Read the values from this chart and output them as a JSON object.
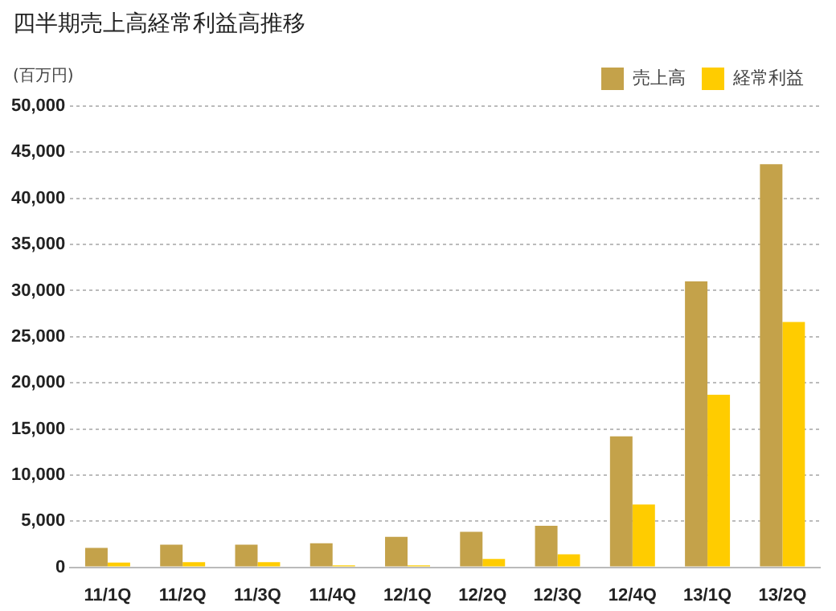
{
  "chart_data": {
    "type": "bar",
    "title": "四半期売上高経常利益高推移",
    "ylabel": "(百万円)",
    "categories": [
      "11/1Q",
      "11/2Q",
      "11/3Q",
      "11/4Q",
      "12/1Q",
      "12/2Q",
      "12/3Q",
      "12/4Q",
      "13/1Q",
      "13/2Q"
    ],
    "series": [
      {
        "name": "売上高",
        "color": "#c4a24a",
        "values": [
          2100,
          2450,
          2450,
          2600,
          3300,
          3850,
          4500,
          14200,
          31000,
          43700
        ]
      },
      {
        "name": "経常利益",
        "color": "#ffcc00",
        "values": [
          500,
          550,
          550,
          200,
          200,
          900,
          1400,
          6800,
          18700,
          26600
        ]
      }
    ],
    "ylim": [
      0,
      50000
    ],
    "yticks": [
      {
        "value": 0,
        "label": "0"
      },
      {
        "value": 5000,
        "label": "5,000"
      },
      {
        "value": 10000,
        "label": "10,000"
      },
      {
        "value": 15000,
        "label": "15,000"
      },
      {
        "value": 20000,
        "label": "20,000"
      },
      {
        "value": 25000,
        "label": "25,000"
      },
      {
        "value": 30000,
        "label": "30,000"
      },
      {
        "value": 35000,
        "label": "35,000"
      },
      {
        "value": 40000,
        "label": "40,000"
      },
      {
        "value": 45000,
        "label": "45,000"
      },
      {
        "value": 50000,
        "label": "50,000"
      }
    ],
    "grid": "y",
    "legend": "top right"
  }
}
